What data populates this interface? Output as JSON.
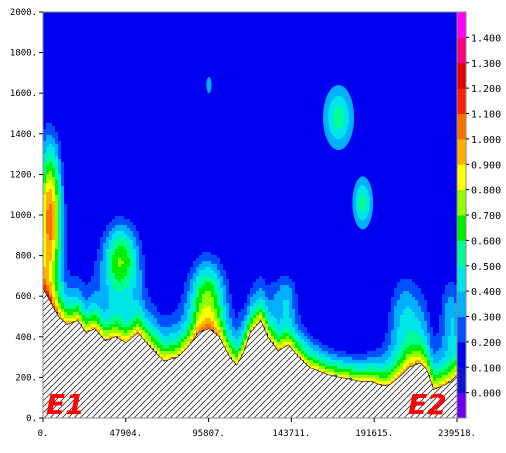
{
  "chart_data": {
    "type": "heatmap",
    "title": "",
    "xlabel": "",
    "ylabel": "",
    "xlim": [
      0,
      239518
    ],
    "ylim": [
      0,
      2000
    ],
    "x_ticks": [
      "0.",
      "47904.",
      "95807.",
      "143711.",
      "191615.",
      "239518."
    ],
    "x_tick_values": [
      0,
      47904,
      95807,
      143711,
      191615,
      239518
    ],
    "y_ticks": [
      "0.",
      "200.",
      "400.",
      "600.",
      "800.",
      "1000.",
      "1200.",
      "1400.",
      "1600.",
      "1800.",
      "2000."
    ],
    "y_tick_values": [
      0,
      200,
      400,
      600,
      800,
      1000,
      1200,
      1400,
      1600,
      1800,
      2000
    ],
    "colorbar": {
      "labels": [
        "0.000",
        "0.100",
        "0.200",
        "0.300",
        "0.400",
        "0.500",
        "0.600",
        "0.700",
        "0.800",
        "0.900",
        "1.000",
        "1.100",
        "1.200",
        "1.300",
        "1.400"
      ],
      "levels": [
        -0.1,
        0.0,
        0.1,
        0.2,
        0.3,
        0.4,
        0.5,
        0.6,
        0.7,
        0.8,
        0.9,
        1.0,
        1.1,
        1.2,
        1.3,
        1.4,
        1.5
      ],
      "colors": [
        "#6a00e8",
        "#1010d0",
        "#0000f0",
        "#0050ff",
        "#00b0ff",
        "#00e6e6",
        "#00ff90",
        "#00ee00",
        "#90ff00",
        "#ffff00",
        "#ffb000",
        "#ff7000",
        "#ff2000",
        "#e00000",
        "#ff0080",
        "#ff00ff"
      ]
    },
    "terrain_profile": {
      "x": [
        0,
        5000,
        9000,
        14000,
        20000,
        25000,
        30000,
        36000,
        42000,
        48000,
        55000,
        62000,
        70000,
        78000,
        84000,
        90000,
        96000,
        102000,
        108000,
        112000,
        116000,
        120000,
        126000,
        130000,
        136000,
        142000,
        148000,
        154000,
        160000,
        166000,
        172000,
        178000,
        184000,
        190000,
        196000,
        200000,
        206000,
        212000,
        218000,
        222000,
        226000,
        232000,
        236000,
        239518
      ],
      "y": [
        640,
        560,
        500,
        460,
        480,
        420,
        440,
        380,
        400,
        370,
        420,
        350,
        280,
        300,
        350,
        420,
        440,
        400,
        300,
        260,
        320,
        420,
        480,
        400,
        330,
        360,
        300,
        250,
        230,
        210,
        200,
        190,
        180,
        180,
        160,
        160,
        200,
        250,
        270,
        240,
        140,
        160,
        180,
        210
      ]
    },
    "labels": [
      "E1",
      "E2"
    ],
    "grid": false
  }
}
